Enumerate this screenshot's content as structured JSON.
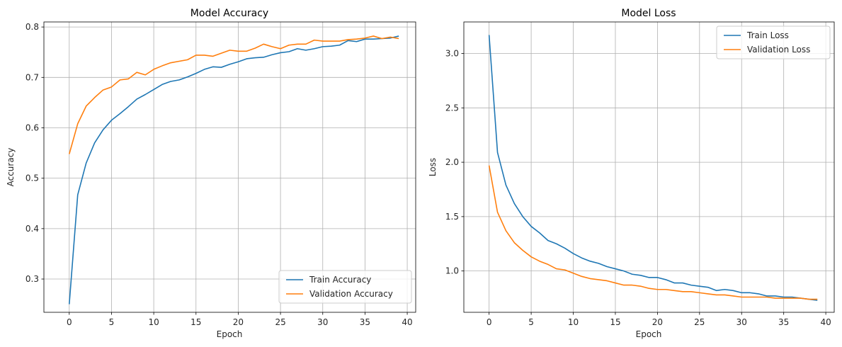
{
  "colors": {
    "train": "#1f77b4",
    "validation": "#ff7f0e",
    "grid": "#b0b0b0"
  },
  "chart_data": [
    {
      "type": "line",
      "title": "Model Accuracy",
      "xlabel": "Epoch",
      "ylabel": "Accuracy",
      "xlim": [
        -3.0,
        41.0
      ],
      "ylim": [
        0.234,
        0.81
      ],
      "xticks": [
        0,
        5,
        10,
        15,
        20,
        25,
        30,
        35,
        40
      ],
      "yticks": [
        0.3,
        0.4,
        0.5,
        0.6,
        0.7,
        0.8
      ],
      "grid": true,
      "legend": "lower right",
      "x": [
        0,
        1,
        2,
        3,
        4,
        5,
        6,
        7,
        8,
        9,
        10,
        11,
        12,
        13,
        14,
        15,
        16,
        17,
        18,
        19,
        20,
        21,
        22,
        23,
        24,
        25,
        26,
        27,
        28,
        29,
        30,
        31,
        32,
        33,
        34,
        35,
        36,
        37,
        38,
        39
      ],
      "series": [
        {
          "name": "Train Accuracy",
          "color": "#1f77b4",
          "values": [
            0.25,
            0.467,
            0.53,
            0.57,
            0.596,
            0.615,
            0.628,
            0.642,
            0.657,
            0.666,
            0.676,
            0.686,
            0.692,
            0.695,
            0.701,
            0.708,
            0.716,
            0.721,
            0.72,
            0.726,
            0.731,
            0.737,
            0.739,
            0.74,
            0.745,
            0.749,
            0.751,
            0.757,
            0.754,
            0.757,
            0.761,
            0.762,
            0.764,
            0.773,
            0.771,
            0.776,
            0.776,
            0.777,
            0.778,
            0.782
          ]
        },
        {
          "name": "Validation Accuracy",
          "color": "#ff7f0e",
          "values": [
            0.548,
            0.608,
            0.643,
            0.66,
            0.675,
            0.681,
            0.695,
            0.697,
            0.71,
            0.705,
            0.716,
            0.723,
            0.729,
            0.732,
            0.735,
            0.744,
            0.744,
            0.742,
            0.748,
            0.754,
            0.752,
            0.752,
            0.758,
            0.766,
            0.761,
            0.757,
            0.764,
            0.766,
            0.766,
            0.774,
            0.772,
            0.772,
            0.772,
            0.775,
            0.776,
            0.778,
            0.782,
            0.777,
            0.78,
            0.777
          ]
        }
      ]
    },
    {
      "type": "line",
      "title": "Model Loss",
      "xlabel": "Epoch",
      "ylabel": "Loss",
      "xlim": [
        -3.0,
        41.0
      ],
      "ylim": [
        0.62,
        3.29
      ],
      "xticks": [
        0,
        5,
        10,
        15,
        20,
        25,
        30,
        35,
        40
      ],
      "yticks": [
        1.0,
        1.5,
        2.0,
        2.5,
        3.0
      ],
      "grid": true,
      "legend": "upper right",
      "x": [
        0,
        1,
        2,
        3,
        4,
        5,
        6,
        7,
        8,
        9,
        10,
        11,
        12,
        13,
        14,
        15,
        16,
        17,
        18,
        19,
        20,
        21,
        22,
        23,
        24,
        25,
        26,
        27,
        28,
        29,
        30,
        31,
        32,
        33,
        34,
        35,
        36,
        37,
        38,
        39
      ],
      "series": [
        {
          "name": "Train Loss",
          "color": "#1f77b4",
          "values": [
            3.17,
            2.09,
            1.79,
            1.62,
            1.5,
            1.41,
            1.35,
            1.28,
            1.25,
            1.21,
            1.16,
            1.12,
            1.09,
            1.07,
            1.04,
            1.02,
            1.0,
            0.97,
            0.96,
            0.94,
            0.94,
            0.92,
            0.89,
            0.89,
            0.87,
            0.86,
            0.85,
            0.82,
            0.83,
            0.82,
            0.8,
            0.8,
            0.79,
            0.77,
            0.77,
            0.76,
            0.76,
            0.75,
            0.74,
            0.73
          ]
        },
        {
          "name": "Validation Loss",
          "color": "#ff7f0e",
          "values": [
            1.97,
            1.54,
            1.37,
            1.26,
            1.19,
            1.13,
            1.09,
            1.06,
            1.02,
            1.01,
            0.98,
            0.95,
            0.93,
            0.92,
            0.91,
            0.89,
            0.87,
            0.87,
            0.86,
            0.84,
            0.83,
            0.83,
            0.82,
            0.81,
            0.81,
            0.8,
            0.79,
            0.78,
            0.78,
            0.77,
            0.76,
            0.76,
            0.76,
            0.76,
            0.75,
            0.75,
            0.75,
            0.75,
            0.74,
            0.74
          ]
        }
      ]
    }
  ]
}
